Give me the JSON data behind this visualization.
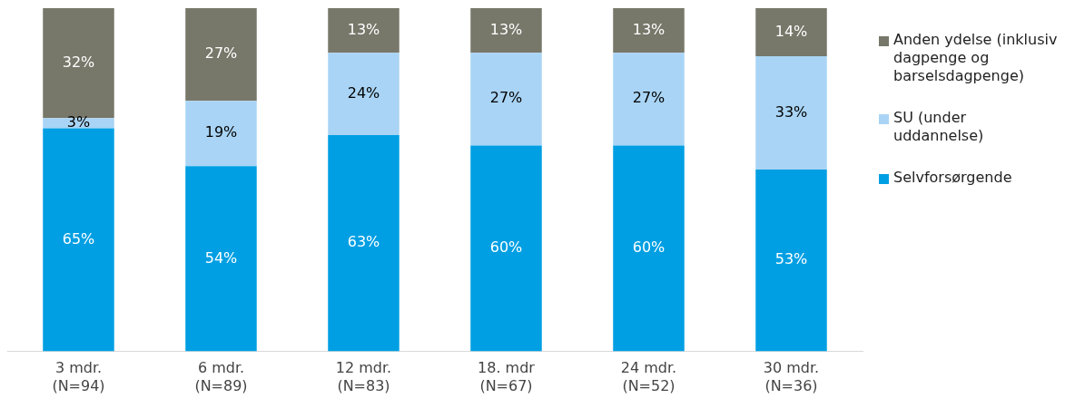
{
  "chart_data": {
    "type": "bar",
    "stacked": true,
    "tick_labels": "x",
    "legend": "right",
    "grid": false,
    "categories": [
      "3 mdr. (N=94)",
      "6 mdr. (N=89)",
      "12 mdr. (N=83)",
      "18. mdr (N=67)",
      "24 mdr. (N=52)",
      "30 mdr. (N=36)"
    ],
    "series": [
      {
        "name": "Selvforsørgende",
        "color": "#009fe3",
        "values": [
          65,
          54,
          63,
          60,
          60,
          53
        ],
        "value_labels": [
          "65%",
          "54%",
          "63%",
          "60%",
          "60%",
          "53%"
        ]
      },
      {
        "name": "SU (under uddannelse)",
        "color": "#a9d4f5",
        "values": [
          3,
          19,
          24,
          27,
          27,
          33
        ],
        "value_labels": [
          "3%",
          "19%",
          "24%",
          "27%",
          "27%",
          "33%"
        ]
      },
      {
        "name": "Anden ydelse (inklusiv dagpenge og barselsdagpenge)",
        "color": "#77776a",
        "values": [
          32,
          27,
          13,
          13,
          13,
          14
        ],
        "value_labels": [
          "32%",
          "27%",
          "13%",
          "13%",
          "13%",
          "14%"
        ]
      }
    ]
  }
}
